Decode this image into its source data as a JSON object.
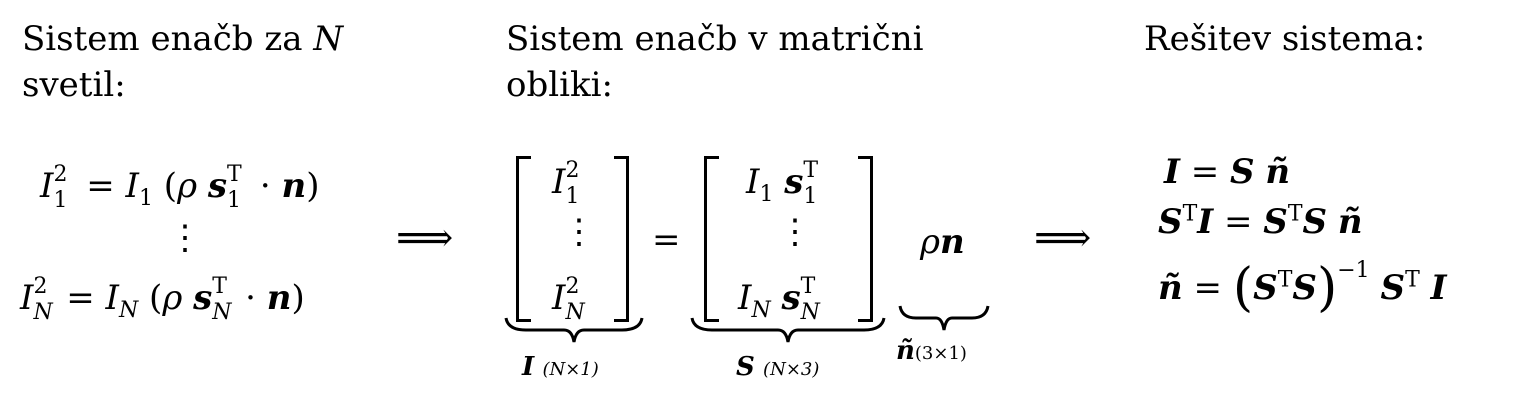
{
  "headings": {
    "col1_line1": "Sistem enačb za N",
    "col1_line2": "svetil:",
    "col2_line1": "Sistem enačb v matrični",
    "col2_line2": "obliki:",
    "col3_line1": "Rešitev sistema:"
  },
  "symbols": {
    "implies": "⟹",
    "vdots": "⋮",
    "equals": "=",
    "rho_n": "ρn"
  },
  "labels": {
    "I_dim": "(N×1)",
    "S_dim": "(N×3)",
    "n_dim": "(3×1)"
  }
}
